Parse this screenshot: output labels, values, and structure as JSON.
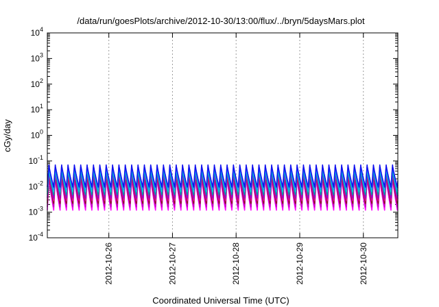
{
  "chart_data": {
    "type": "line",
    "title": "/data/run/goesPlots/archive/2012-10-30/13:00/flux/../bryn/5daysMars.plot",
    "xlabel": "Coordinated Universal Time (UTC)",
    "ylabel": "cGy/day",
    "y_scale": "log",
    "ylim": [
      0.0001,
      10000
    ],
    "y_ticks": [
      {
        "base": "10",
        "exp": "-4",
        "value": 0.0001
      },
      {
        "base": "10",
        "exp": "-3",
        "value": 0.001
      },
      {
        "base": "10",
        "exp": "-2",
        "value": 0.01
      },
      {
        "base": "10",
        "exp": "-1",
        "value": 0.1
      },
      {
        "base": "10",
        "exp": "0",
        "value": 1
      },
      {
        "base": "10",
        "exp": "1",
        "value": 10
      },
      {
        "base": "10",
        "exp": "2",
        "value": 100
      },
      {
        "base": "10",
        "exp": "3",
        "value": 1000
      },
      {
        "base": "10",
        "exp": "4",
        "value": 10000
      }
    ],
    "xlim": [
      "2012-10-25T00:48",
      "2012-10-30T13:00"
    ],
    "x_ticks": [
      "2012-10-26",
      "2012-10-27",
      "2012-10-28",
      "2012-10-29",
      "2012-10-30"
    ],
    "grid": true,
    "legend": "none",
    "pattern": {
      "cycles_per_day": 10,
      "rise_fraction": 0.25,
      "start": "2012-10-25T00:48"
    },
    "series": [
      {
        "color": "#ff00ff",
        "peak": 0.022,
        "trough": 0.0012
      },
      {
        "color": "#c000c0",
        "peak": 0.026,
        "trough": 0.0016
      },
      {
        "color": "#8b1a1a",
        "peak": 0.03,
        "trough": 0.0022
      },
      {
        "color": "#e01090",
        "peak": 0.034,
        "trough": 0.0028
      },
      {
        "color": "#9400d3",
        "peak": 0.04,
        "trough": 0.0036
      },
      {
        "color": "#00a0a0",
        "peak": 0.046,
        "trough": 0.0048
      },
      {
        "color": "#00cfcf",
        "peak": 0.052,
        "trough": 0.0062
      },
      {
        "color": "#1e90ff",
        "peak": 0.06,
        "trough": 0.0078
      },
      {
        "color": "#1010ee",
        "peak": 0.07,
        "trough": 0.0095
      }
    ]
  }
}
